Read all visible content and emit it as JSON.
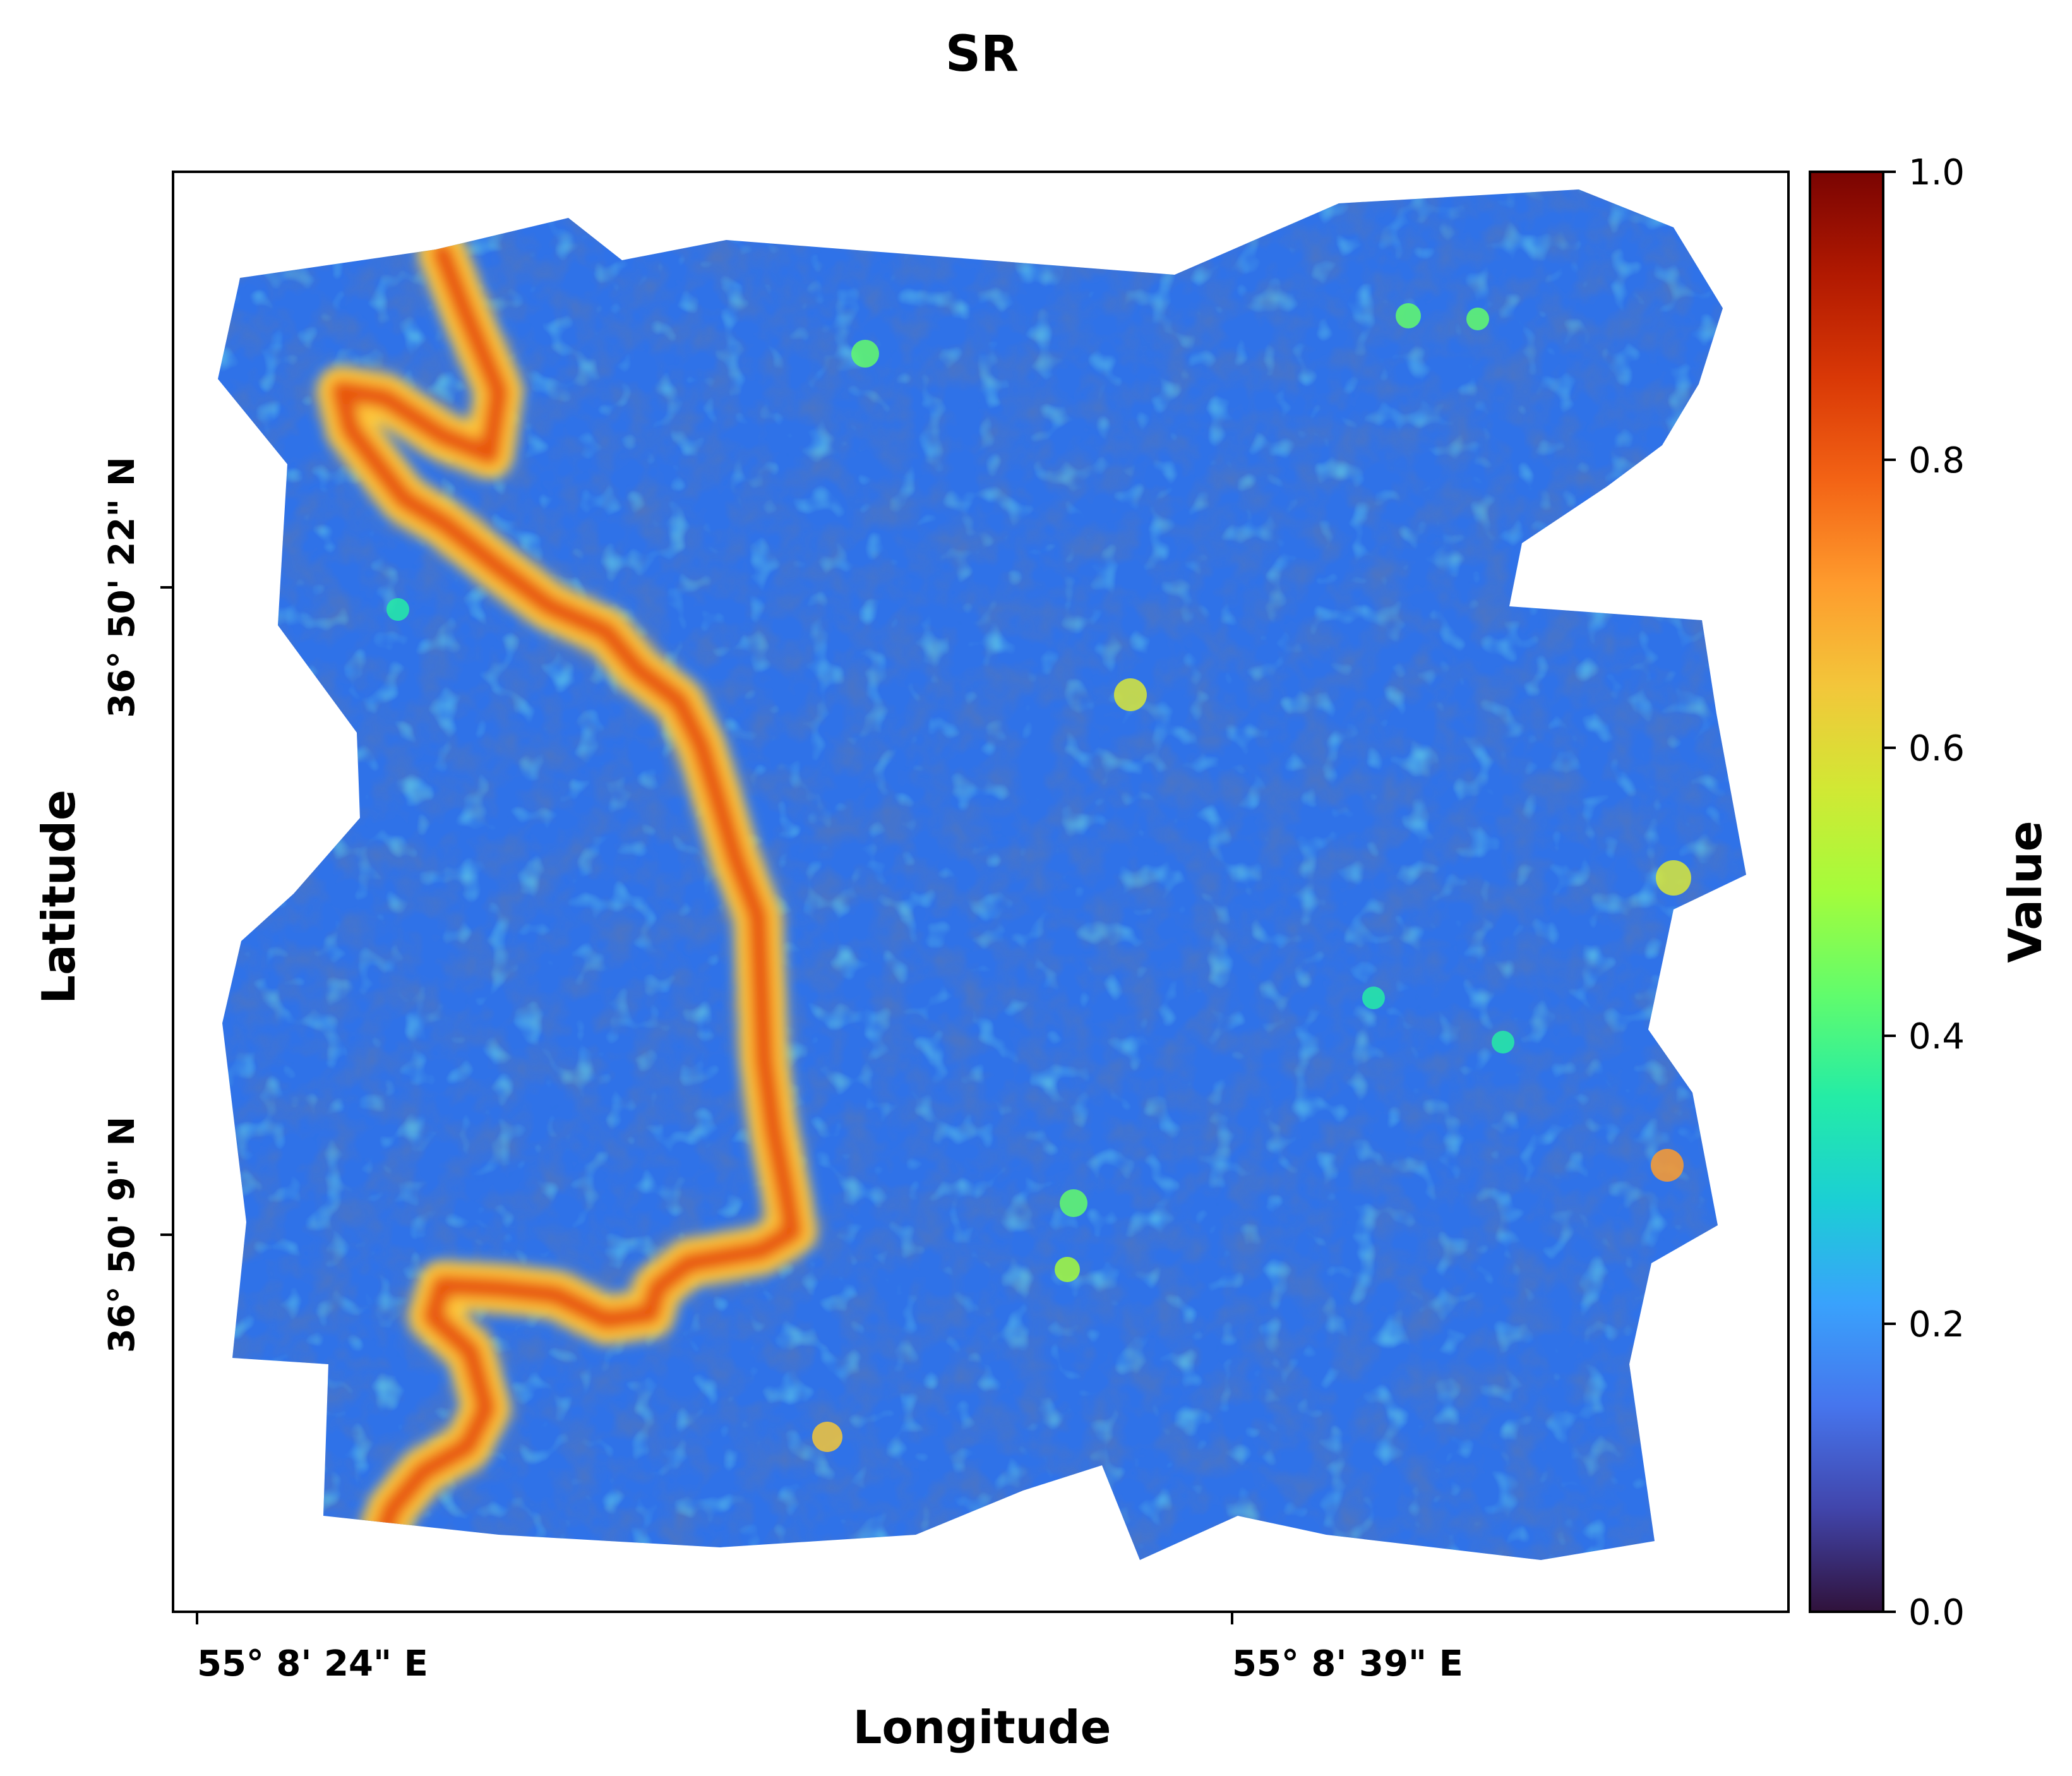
{
  "title": "SR",
  "x_axis": {
    "label": "Longitude",
    "ticks": [
      "55° 8' 24\" E",
      "55° 8' 39\" E"
    ]
  },
  "y_axis": {
    "label": "Latitude",
    "ticks": [
      "36° 50' 22\" N",
      "36° 50' 9\" N"
    ]
  },
  "colorbar": {
    "label": "Value",
    "colormap": "turbo",
    "range": [
      0.0,
      1.0
    ],
    "ticks": [
      "0.0",
      "0.2",
      "0.4",
      "0.6",
      "0.8",
      "1.0"
    ],
    "stops": [
      "#30123b",
      "#4145ab",
      "#4675ed",
      "#39a2fc",
      "#1bcfd4",
      "#24eca6",
      "#61fc6c",
      "#a4fc3b",
      "#d1e834",
      "#f3c63a",
      "#fe9b2d",
      "#f36315",
      "#d93806",
      "#b11901",
      "#7a0402"
    ]
  },
  "map": {
    "background_color": "#2f72e8",
    "feature": "high-value channel (0.7–1.0) running top-left to bottom-left"
  }
}
